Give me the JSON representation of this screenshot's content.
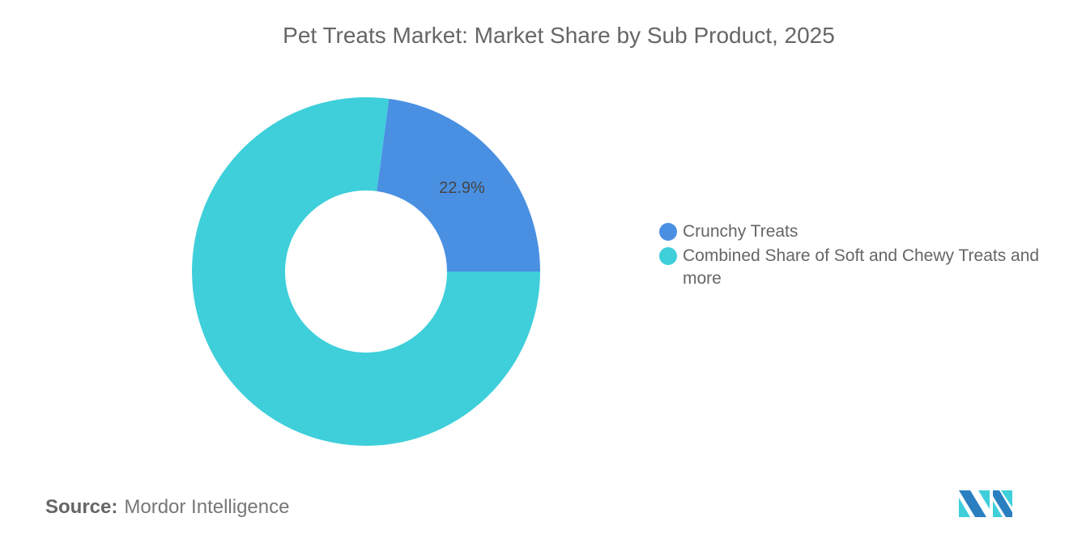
{
  "chart_data": {
    "type": "pie",
    "title": "Pet Treats Market: Market Share by Sub Product, 2025",
    "donut": true,
    "slices": [
      {
        "name": "Crunchy Treats",
        "value": 22.9,
        "label": "22.9%",
        "color": "#4a90e2"
      },
      {
        "name": "Combined Share of Soft and Chewy Treats and more",
        "value": null,
        "label": "",
        "color": "#3ecfda"
      }
    ],
    "legend_position": "right"
  },
  "source": {
    "label": "Source:",
    "value": "Mordor Intelligence"
  },
  "logo": {
    "text": "MI",
    "colors": [
      "#2a7fc1",
      "#3ecfda"
    ]
  }
}
